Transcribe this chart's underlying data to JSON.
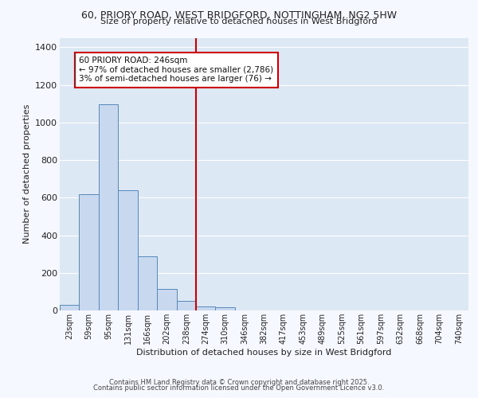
{
  "title_line1": "60, PRIORY ROAD, WEST BRIDGFORD, NOTTINGHAM, NG2 5HW",
  "title_line2": "Size of property relative to detached houses in West Bridgford",
  "xlabel": "Distribution of detached houses by size in West Bridgford",
  "ylabel": "Number of detached properties",
  "bin_labels": [
    "23sqm",
    "59sqm",
    "95sqm",
    "131sqm",
    "166sqm",
    "202sqm",
    "238sqm",
    "274sqm",
    "310sqm",
    "346sqm",
    "382sqm",
    "417sqm",
    "453sqm",
    "489sqm",
    "525sqm",
    "561sqm",
    "597sqm",
    "632sqm",
    "668sqm",
    "704sqm",
    "740sqm"
  ],
  "bar_values": [
    30,
    620,
    1095,
    640,
    290,
    115,
    50,
    20,
    15,
    0,
    0,
    0,
    0,
    0,
    0,
    0,
    0,
    0,
    0,
    0,
    0
  ],
  "bar_color": "#c8d8ee",
  "bar_edge_color": "#5588bb",
  "vline_x": 6.5,
  "vline_color": "#cc0000",
  "annotation_text": "60 PRIORY ROAD: 246sqm\n← 97% of detached houses are smaller (2,786)\n3% of semi-detached houses are larger (76) →",
  "annotation_box_color": "#ffffff",
  "annotation_box_edge": "#cc0000",
  "ylim": [
    0,
    1450
  ],
  "yticks": [
    0,
    200,
    400,
    600,
    800,
    1000,
    1200,
    1400
  ],
  "bg_color": "#dde8f5",
  "fig_bg_color": "#f5f8ff",
  "grid_color": "#ffffff",
  "footer_line1": "Contains HM Land Registry data © Crown copyright and database right 2025.",
  "footer_line2": "Contains public sector information licensed under the Open Government Licence v3.0."
}
